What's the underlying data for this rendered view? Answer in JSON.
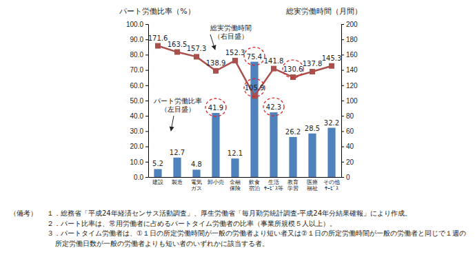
{
  "chart_data": {
    "type": "bar",
    "categories": [
      "建設",
      "製造",
      "電気ガス",
      "卸小売",
      "金融保険",
      "飲食宿泊",
      "生活ｻｰﾋﾞｽ等",
      "教育学習",
      "医療福祉",
      "その他ｻｰﾋﾞｽ"
    ],
    "series": [
      {
        "name": "パート労働比率",
        "type": "bar",
        "color": "#4f81bd",
        "values": [
          5.2,
          12.7,
          4.8,
          41.9,
          12.1,
          75.4,
          42.3,
          26.2,
          28.5,
          32.2
        ],
        "data_labels": true
      },
      {
        "name": "総実労働時間",
        "type": "line",
        "axis": "y2",
        "color": "#a9504c",
        "marker": "square",
        "values": [
          171.6,
          163.5,
          157.3,
          138.9,
          152.3,
          105.9,
          141.8,
          130.6,
          137.8,
          145.3
        ],
        "data_labels": true
      }
    ],
    "y_label": "パート労働比率（%）",
    "y2_label": "総実労働時間（月間）",
    "ylim": [
      0,
      100
    ],
    "yticks": [
      {
        "value": 0,
        "label": "0.0"
      },
      {
        "value": 10,
        "label": "10.0"
      },
      {
        "value": 20,
        "label": "20.0"
      },
      {
        "value": 30,
        "label": "30.0"
      },
      {
        "value": 40,
        "label": "40.0"
      },
      {
        "value": 50,
        "label": "50.0"
      },
      {
        "value": 60,
        "label": "60.0"
      },
      {
        "value": 70,
        "label": "70.0"
      },
      {
        "value": 80,
        "label": "80.0"
      },
      {
        "value": 90,
        "label": "90.0"
      },
      {
        "value": 100,
        "label": "100.0"
      }
    ],
    "y2lim": [
      0,
      200
    ],
    "y2ticks": [
      0,
      20,
      40,
      60,
      80,
      100,
      120,
      140,
      160,
      180,
      200
    ],
    "annotations": [
      "（左目盛）",
      "（右目盛）"
    ],
    "grid": false,
    "notes_label": "（備考）",
    "notes": [
      "１．総務省「平成24年経済センサス活動調査」、厚生労働省「毎月勤労統計調査-平成24年分結果確報」により作成。",
      "２．パート比率は、常用労働者に占めるパートタイム労働者の比率（事業所規模５人以上）。",
      "３．パートタイム労働者は、①１日の所定労働時間が一般の労働者より短い者又は②１日の所定労働時間が一般の労働者と同じで１週の所定労働日数が一般の労働者よりも短い者のいずれかに該当する者。"
    ]
  }
}
